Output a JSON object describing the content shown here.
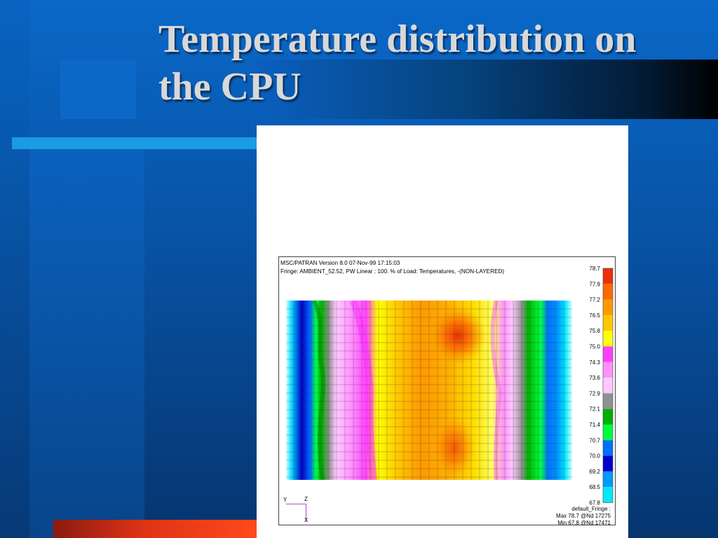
{
  "slide": {
    "title_line1": "Temperature distribution on",
    "title_line2": "the CPU"
  },
  "plot": {
    "header_line1": "MSC/PATRAN Version 8.0 07-Nov-99 17:15:03",
    "header_line2": "Fringe: AMBIENT_52.52, PW Linear : 100. % of Load: Temperatures, -(NON-LAYERED)",
    "legend_values": [
      "78.7",
      "77.9",
      "77.2",
      "76.5",
      "75.8",
      "75.0",
      "74.3",
      "73.6",
      "72.9",
      "72.1",
      "71.4",
      "70.7",
      "70.0",
      "69.2",
      "68.5",
      "67.8"
    ],
    "legend_colors": [
      "#e8300a",
      "#ff6a00",
      "#ff9900",
      "#ffc800",
      "#ffff00",
      "#ff40ff",
      "#ff90ff",
      "#ffc8ff",
      "#909090",
      "#00b000",
      "#00ff40",
      "#0070ff",
      "#0000c8",
      "#0098ff",
      "#00e8ff",
      "#d8ffff"
    ],
    "fringe_title": "default_Fringe :",
    "max_text": "Max 78.7 @Nd 17275",
    "min_text": "Min 67.8 @Nd 17471",
    "axis_y": "Y",
    "axis_z": "Z",
    "axis_x": "X"
  },
  "colors": {
    "background": "#0855a8",
    "accent_cyan": "#1b9be4",
    "accent_red": "#e03416",
    "title_text": "#d8d8d8"
  }
}
